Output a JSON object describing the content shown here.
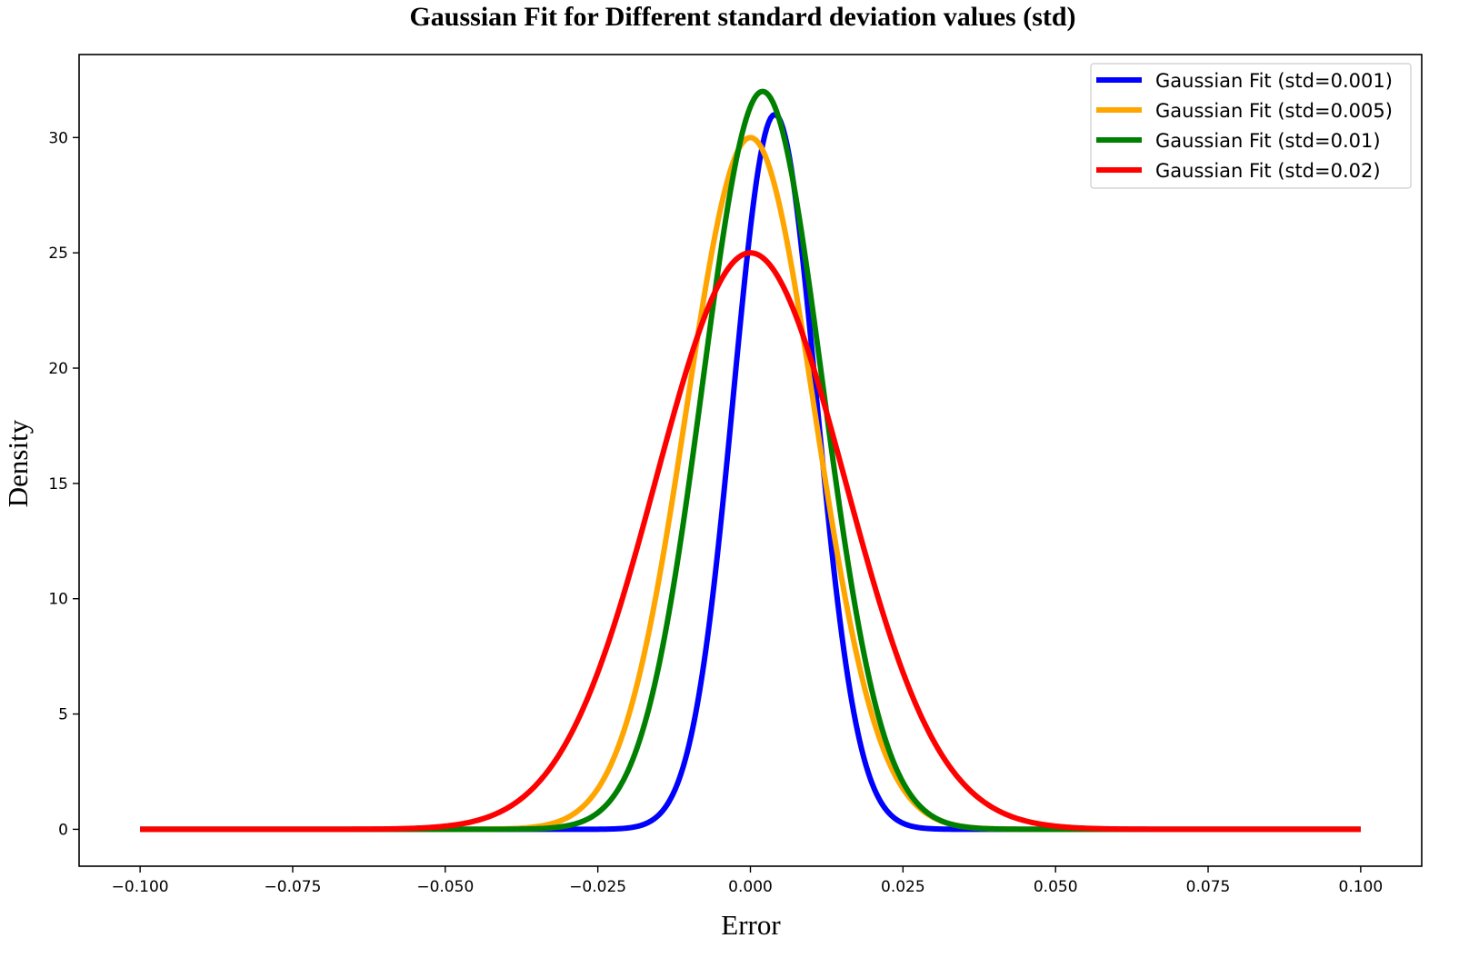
{
  "chart_data": {
    "type": "line",
    "title": "Gaussian Fit for Different standard deviation values (std)",
    "xlabel": "Error",
    "ylabel": "Density",
    "xlim": [
      -0.11,
      0.11
    ],
    "ylim": [
      -1.6,
      33.6
    ],
    "xticks": [
      -0.1,
      -0.075,
      -0.05,
      -0.025,
      0.0,
      0.025,
      0.05,
      0.075,
      0.1
    ],
    "xtick_labels": [
      "−0.100",
      "−0.075",
      "−0.050",
      "−0.025",
      "0.000",
      "0.025",
      "0.050",
      "0.075",
      "0.100"
    ],
    "yticks": [
      0,
      5,
      10,
      15,
      20,
      25,
      30
    ],
    "ytick_labels": [
      "0",
      "5",
      "10",
      "15",
      "20",
      "25",
      "30"
    ],
    "x_range": [
      -0.1,
      0.1
    ],
    "grid": false,
    "legend_position": "top-right",
    "series": [
      {
        "name": "Gaussian Fit (std=0.001)",
        "color": "#0000ff",
        "mean": 0.004,
        "sigma": 0.0068,
        "peak": 31.0
      },
      {
        "name": "Gaussian Fit (std=0.005)",
        "color": "#ffa500",
        "mean": 0.0,
        "sigma": 0.0105,
        "peak": 30.0
      },
      {
        "name": "Gaussian Fit (std=0.01)",
        "color": "#008000",
        "mean": 0.002,
        "sigma": 0.0098,
        "peak": 32.0
      },
      {
        "name": "Gaussian Fit (std=0.02)",
        "color": "#ff0000",
        "mean": 0.0,
        "sigma": 0.0155,
        "peak": 25.0
      }
    ]
  }
}
